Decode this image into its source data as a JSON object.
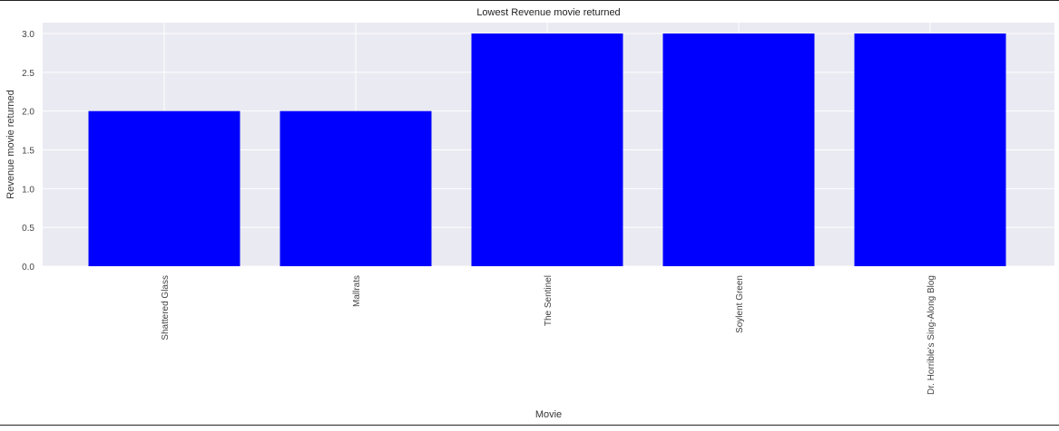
{
  "chart_data": {
    "type": "bar",
    "title": "Lowest Revenue movie returned",
    "xlabel": "Movie",
    "ylabel": "Revenue movie returned",
    "categories": [
      "Shattered Glass",
      "Mallrats",
      "The Sentinel",
      "Soylent Green",
      "Dr. Horrible's Sing-Along Blog"
    ],
    "values": [
      2,
      2,
      3,
      3,
      3
    ],
    "ylim": [
      0,
      3.0
    ],
    "yticks": [
      "0.0",
      "0.5",
      "1.0",
      "1.5",
      "2.0",
      "2.5",
      "3.0"
    ],
    "bar_color": "#0000ff",
    "background_color": "#eaeaf2",
    "grid_color": "#ffffff",
    "grid": true
  }
}
